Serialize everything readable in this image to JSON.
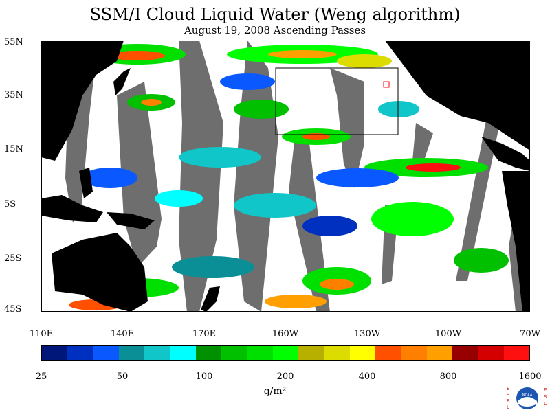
{
  "title": "SSM/I Cloud Liquid Water (Weng algorithm)",
  "subtitle": "August 19, 2008  Ascending Passes",
  "colors": {
    "land": "#000000",
    "no_data_swath_gap": "#6e6e6e",
    "clear": "#ffffff"
  },
  "map": {
    "lat_labels": [
      "55N",
      "35N",
      "15N",
      "5S",
      "25S",
      "45S"
    ],
    "lon_labels": [
      "110E",
      "140E",
      "170E",
      "160W",
      "130W",
      "100W",
      "70W"
    ]
  },
  "colorbar": {
    "colors": [
      "#00177a",
      "#0030c0",
      "#0a58ff",
      "#0a8f96",
      "#10c6c8",
      "#00ffff",
      "#009000",
      "#00c000",
      "#00e000",
      "#00ff00",
      "#b8b000",
      "#dcdc00",
      "#ffff00",
      "#ff5000",
      "#ff8000",
      "#ffa000",
      "#960000",
      "#d40000",
      "#ff1010"
    ],
    "tick_labels": [
      "25",
      "50",
      "100",
      "200",
      "400",
      "800",
      "1600"
    ],
    "units": "g/m²"
  },
  "logo": {
    "left_letters": [
      "E",
      "S",
      "R",
      "L"
    ],
    "right_letters": [
      "P",
      "S",
      "D"
    ],
    "center_text": "NOAA"
  }
}
